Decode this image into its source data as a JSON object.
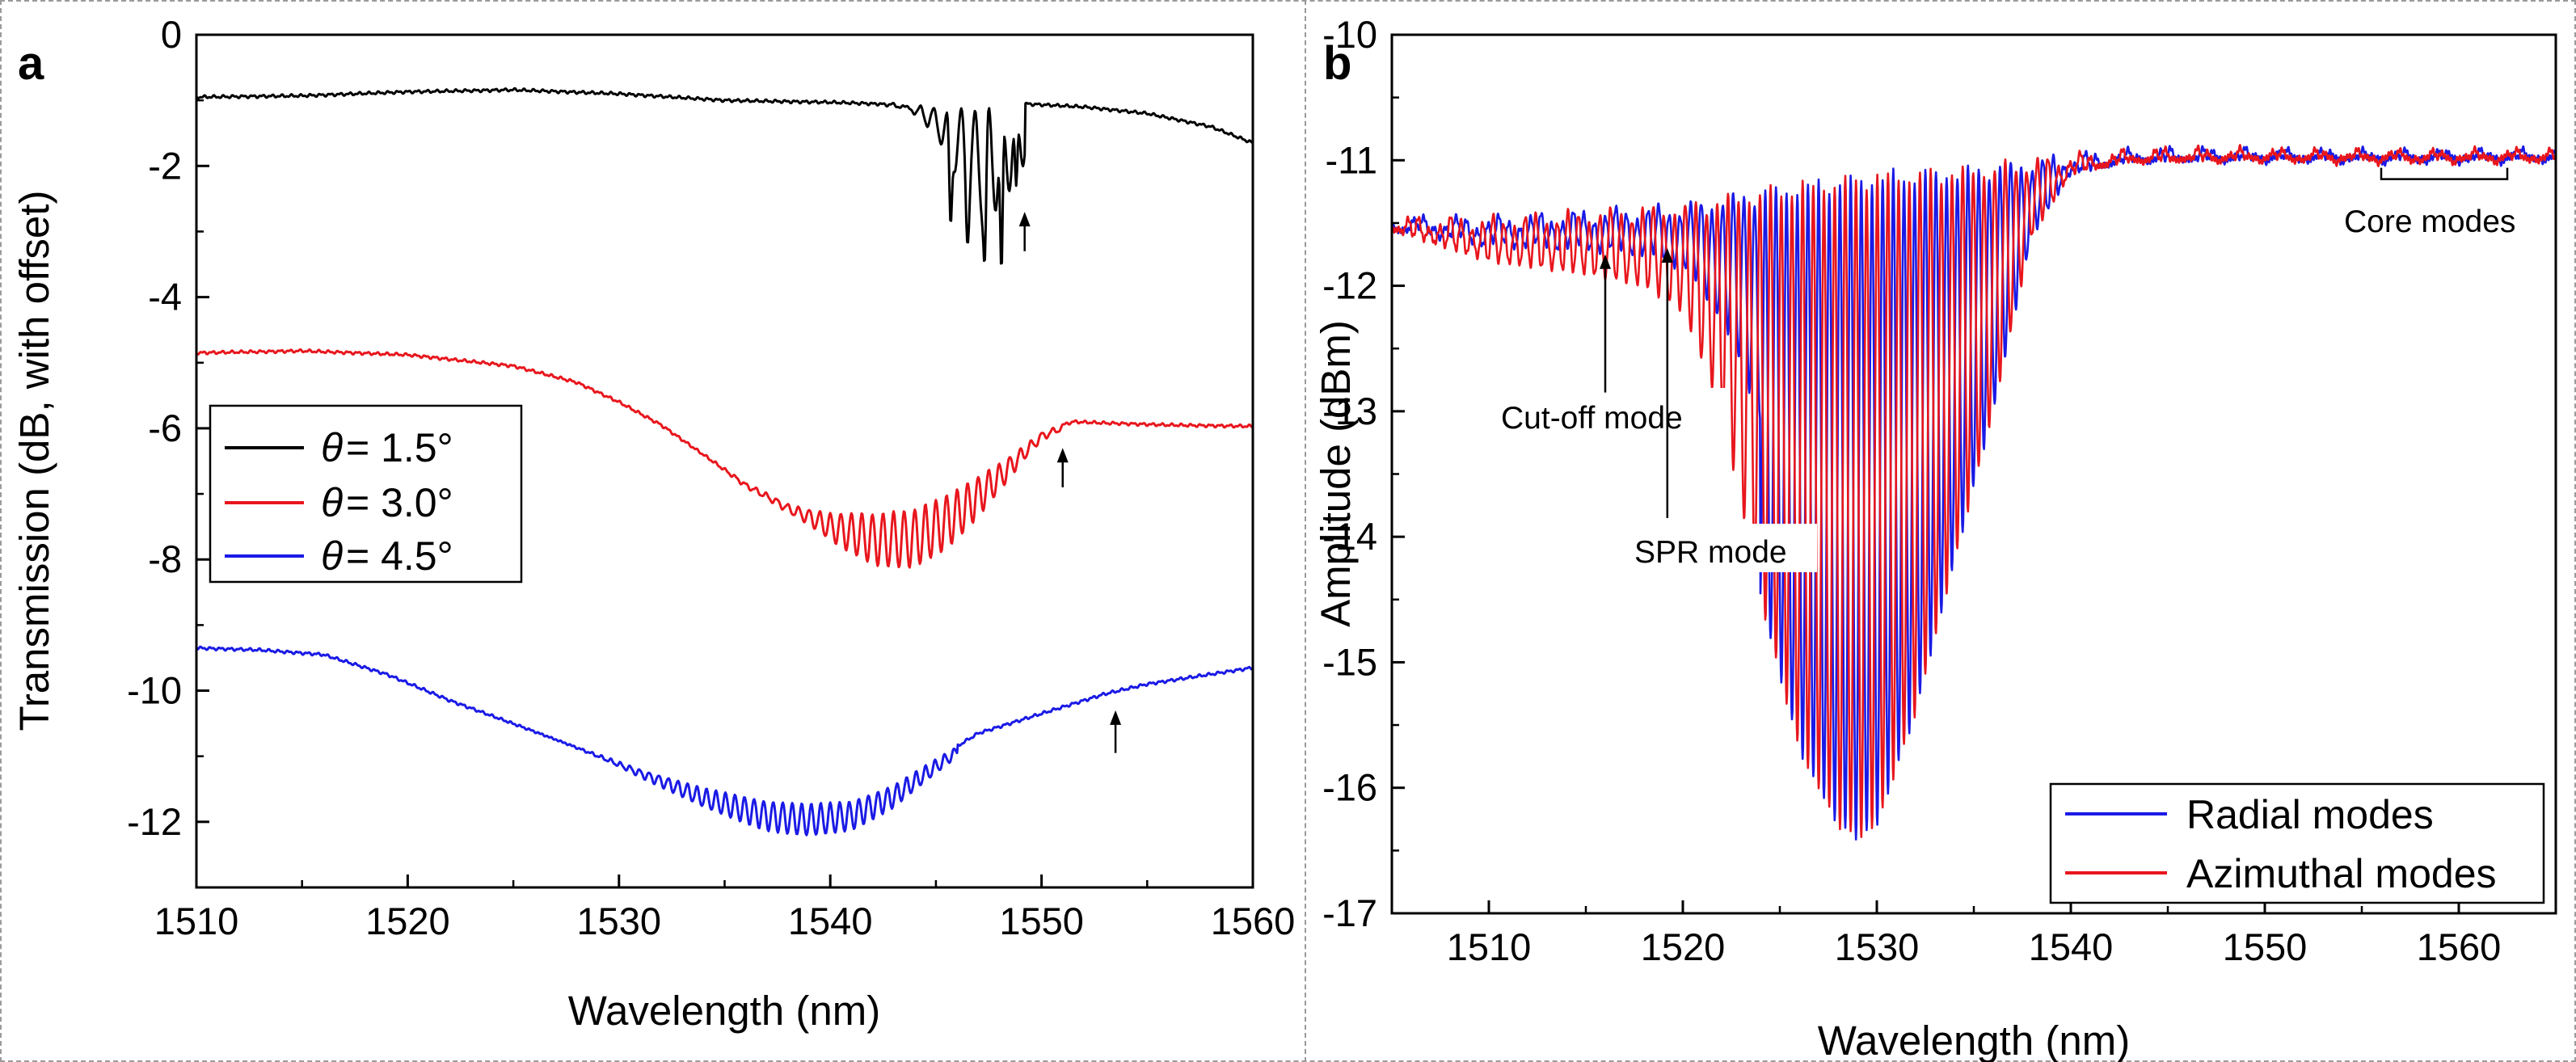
{
  "chart_data": [
    {
      "panel_label": "a",
      "type": "line",
      "title": "",
      "xlabel": "Wavelength (nm)",
      "ylabel": "Transmission (dB, with offset)",
      "xlim": [
        1510,
        1560
      ],
      "ylim": [
        -13,
        0
      ],
      "xticks": [
        1510,
        1520,
        1530,
        1540,
        1550,
        1560
      ],
      "yticks": [
        0,
        -2,
        -4,
        -6,
        -8,
        -10,
        -12
      ],
      "grid": false,
      "legend_position": "middle-left",
      "series": [
        {
          "name": "θ = 1.5°",
          "legend_symbol": "θ",
          "legend_value": "= 1.5°",
          "color": "#000000",
          "base": [
            [
              1510,
              -0.95
            ],
            [
              1515,
              -0.93
            ],
            [
              1520,
              -0.87
            ],
            [
              1525,
              -0.84
            ],
            [
              1530,
              -0.9
            ],
            [
              1535,
              -1.0
            ],
            [
              1540,
              -1.03
            ],
            [
              1543,
              -1.06
            ],
            [
              1545,
              -1.12
            ],
            [
              1547,
              -1.15
            ],
            [
              1549,
              -1.05
            ],
            [
              1552,
              -1.1
            ],
            [
              1555,
              -1.2
            ],
            [
              1558,
              -1.4
            ],
            [
              1560,
              -1.65
            ]
          ],
          "ripple": {
            "start": 1541,
            "end": 1549.2,
            "center": 1547.5,
            "width": 2.2,
            "depth": 1.6,
            "period": 0.65
          },
          "dips": [
            [
              1545.7,
              -2.9
            ],
            [
              1546.5,
              -3.2
            ],
            [
              1547.3,
              -3.5
            ],
            [
              1548.1,
              -3.6
            ],
            [
              1548.8,
              -2.3
            ]
          ]
        },
        {
          "name": "θ = 3.0°",
          "legend_symbol": "θ",
          "legend_value": "= 3.0°",
          "color": "#e8161d",
          "base": [
            [
              1510,
              -4.85
            ],
            [
              1515,
              -4.82
            ],
            [
              1520,
              -4.88
            ],
            [
              1525,
              -5.05
            ],
            [
              1528,
              -5.3
            ],
            [
              1530,
              -5.6
            ],
            [
              1532,
              -5.95
            ],
            [
              1534,
              -6.4
            ],
            [
              1536,
              -6.85
            ],
            [
              1538,
              -7.15
            ],
            [
              1540,
              -7.3
            ],
            [
              1542,
              -7.32
            ],
            [
              1544,
              -7.22
            ],
            [
              1546,
              -6.95
            ],
            [
              1548,
              -6.55
            ],
            [
              1550,
              -6.05
            ],
            [
              1551.5,
              -5.9
            ],
            [
              1553,
              -5.92
            ],
            [
              1556,
              -5.95
            ],
            [
              1560,
              -5.97
            ]
          ],
          "ripple": {
            "start": 1527,
            "end": 1551,
            "center": 1544,
            "width": 4.5,
            "depth": 0.9,
            "period": 0.5
          },
          "dips": []
        },
        {
          "name": "θ = 4.5°",
          "legend_symbol": "θ",
          "legend_value": "= 4.5°",
          "color": "#1a1ae6",
          "base": [
            [
              1510,
              -9.35
            ],
            [
              1513,
              -9.38
            ],
            [
              1516,
              -9.45
            ],
            [
              1519,
              -9.75
            ],
            [
              1522,
              -10.15
            ],
            [
              1525,
              -10.5
            ],
            [
              1528,
              -10.85
            ],
            [
              1531,
              -11.2
            ],
            [
              1534,
              -11.5
            ],
            [
              1537,
              -11.7
            ],
            [
              1539,
              -11.75
            ],
            [
              1541,
              -11.7
            ],
            [
              1543,
              -11.45
            ],
            [
              1545,
              -11.05
            ],
            [
              1547,
              -10.65
            ],
            [
              1549,
              -10.45
            ],
            [
              1551,
              -10.25
            ],
            [
              1553,
              -10.05
            ],
            [
              1555,
              -9.9
            ],
            [
              1557,
              -9.8
            ],
            [
              1560,
              -9.65
            ]
          ],
          "ripple": {
            "start": 1522,
            "end": 1546,
            "center": 1539,
            "width": 7,
            "depth": 0.45,
            "period": 0.45
          },
          "dips": []
        }
      ],
      "arrows": [
        {
          "x": 1549.2,
          "y_tail": -3.3,
          "y_head": -2.7
        },
        {
          "x": 1551.0,
          "y_tail": -6.9,
          "y_head": -6.3
        },
        {
          "x": 1553.5,
          "y_tail": -10.95,
          "y_head": -10.3
        }
      ]
    },
    {
      "panel_label": "b",
      "type": "line",
      "title": "",
      "xlabel": "Wavelength (nm)",
      "ylabel": "Amplitude (dBm)",
      "xlim": [
        1505,
        1565
      ],
      "ylim": [
        -17,
        -10
      ],
      "xticks": [
        1510,
        1520,
        1530,
        1540,
        1550,
        1560
      ],
      "yticks": [
        -10,
        -11,
        -12,
        -13,
        -14,
        -15,
        -16,
        -17
      ],
      "grid": false,
      "legend_position": "bottom-right",
      "envelope": [
        [
          1505,
          -11.5
        ],
        [
          1510,
          -11.5
        ],
        [
          1515,
          -11.45
        ],
        [
          1520,
          -11.4
        ],
        [
          1525,
          -11.25
        ],
        [
          1530,
          -11.15
        ],
        [
          1535,
          -11.1
        ],
        [
          1540,
          -11.0
        ],
        [
          1545,
          -10.95
        ],
        [
          1550,
          -10.96
        ],
        [
          1555,
          -10.97
        ],
        [
          1560,
          -10.97
        ],
        [
          1565,
          -10.96
        ]
      ],
      "trough_bottom": [
        [
          1505,
          -11.55
        ],
        [
          1510,
          -11.8
        ],
        [
          1515,
          -11.9
        ],
        [
          1518,
          -12.0
        ],
        [
          1520,
          -12.2
        ],
        [
          1522,
          -13.0
        ],
        [
          1524,
          -14.5
        ],
        [
          1526,
          -15.7
        ],
        [
          1528,
          -16.3
        ],
        [
          1529,
          -16.4
        ],
        [
          1530,
          -16.3
        ],
        [
          1532,
          -15.4
        ],
        [
          1534,
          -14.2
        ],
        [
          1536,
          -13.0
        ],
        [
          1538,
          -11.6
        ],
        [
          1540,
          -11.1
        ],
        [
          1543,
          -11.0
        ],
        [
          1550,
          -10.98
        ],
        [
          1565,
          -10.98
        ]
      ],
      "series": [
        {
          "name": "Radial modes",
          "color": "#1a1ae6",
          "phase": 0.0,
          "fringe_period": 0.55
        },
        {
          "name": "Azimuthal modes",
          "color": "#e8161d",
          "phase": 0.5,
          "fringe_period": 0.55
        }
      ],
      "annotations": [
        {
          "text": "Cut-off mode",
          "arrow_x": 1516,
          "arrow_tail_y": -12.85,
          "arrow_head_y": -11.75
        },
        {
          "text": "SPR mode",
          "arrow_x": 1519.2,
          "arrow_tail_y": -13.85,
          "arrow_head_y": -11.7
        },
        {
          "text": "Core modes",
          "bracket_from": 1556,
          "bracket_to": 1562.5,
          "bracket_y": -11.15
        }
      ]
    }
  ]
}
